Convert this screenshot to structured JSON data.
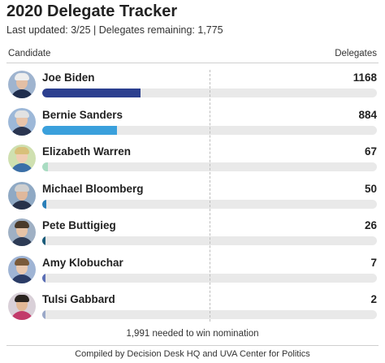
{
  "header": {
    "title": "2020 Delegate Tracker",
    "subtitle": "Last updated: 3/25 | Delegates remaining: 1,775",
    "col_candidate": "Candidate",
    "col_delegates": "Delegates"
  },
  "chart_data": {
    "type": "bar",
    "orientation": "horizontal",
    "title": "2020 Delegate Tracker",
    "xlim": [
      0,
      3979
    ],
    "reference_line": {
      "value": 1991,
      "label": "1,991 needed to win nomination"
    },
    "categories": [
      "Joe Biden",
      "Bernie Sanders",
      "Elizabeth Warren",
      "Michael Bloomberg",
      "Pete Buttigieg",
      "Amy Klobuchar",
      "Tulsi Gabbard"
    ],
    "values": [
      1168,
      884,
      67,
      50,
      26,
      7,
      2
    ],
    "colors": [
      "#2b3f8f",
      "#3aa0dc",
      "#a9dcc2",
      "#2a7fb8",
      "#1a5c7a",
      "#5b6fb5",
      "#9aa8c8"
    ]
  },
  "footer": {
    "needed": "1,991 needed to win nomination",
    "credit": "Compiled by Decision Desk HQ and UVA Center for Politics"
  }
}
